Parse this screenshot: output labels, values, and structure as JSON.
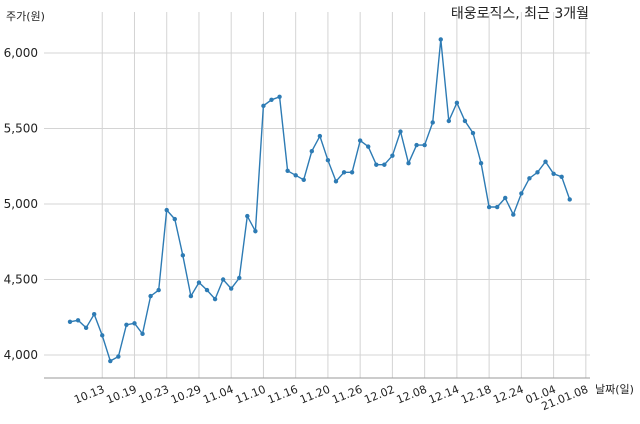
{
  "chart_data": {
    "type": "line",
    "title": "태웅로직스, 최근 3개월",
    "ylabel": "주가(원)",
    "xlabel": "날짜(일)",
    "ylim": [
      3850,
      6250
    ],
    "y_ticks": [
      4000,
      4500,
      5000,
      5500,
      6000
    ],
    "y_tick_labels": [
      "4,000",
      "4,500",
      "5,000",
      "5,500",
      "6,000"
    ],
    "x_tick_labels": [
      "10.13",
      "10.19",
      "10.23",
      "10.29",
      "11.04",
      "11.10",
      "11.16",
      "11.20",
      "11.26",
      "12.02",
      "12.08",
      "12.14",
      "12.18",
      "12.24",
      "01.04",
      "21.01.08"
    ],
    "x_tick_index": [
      4,
      8,
      12,
      16,
      20,
      24,
      28,
      32,
      36,
      40,
      44,
      48,
      52,
      56,
      60,
      64
    ],
    "grid": true,
    "color": "#2d7bb4",
    "series": [
      {
        "name": "",
        "values": [
          4220,
          4230,
          4180,
          4270,
          4130,
          3960,
          3990,
          4200,
          4210,
          4140,
          4390,
          4430,
          4960,
          4900,
          4660,
          4390,
          4480,
          4430,
          4370,
          4500,
          4440,
          4510,
          4920,
          4820,
          5650,
          5690,
          5710,
          5220,
          5190,
          5160,
          5350,
          5450,
          5290,
          5150,
          5210,
          5210,
          5420,
          5380,
          5260,
          5260,
          5320,
          5480,
          5270,
          5390,
          5390,
          5540,
          6090,
          5550,
          5670,
          5550,
          5470,
          5270,
          4980,
          4980,
          5040,
          4930,
          5070,
          5170,
          5210,
          5280,
          5200,
          5180,
          5030
        ]
      }
    ]
  }
}
